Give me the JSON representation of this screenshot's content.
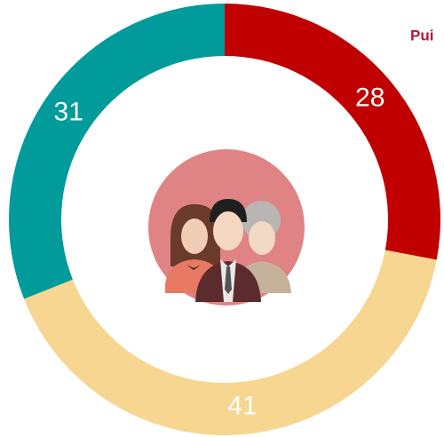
{
  "chart_data": {
    "type": "donut",
    "annotation": "Pui",
    "values": [
      28,
      41,
      31
    ],
    "colors": [
      "#c00000",
      "#f6d690",
      "#009b9a"
    ]
  }
}
